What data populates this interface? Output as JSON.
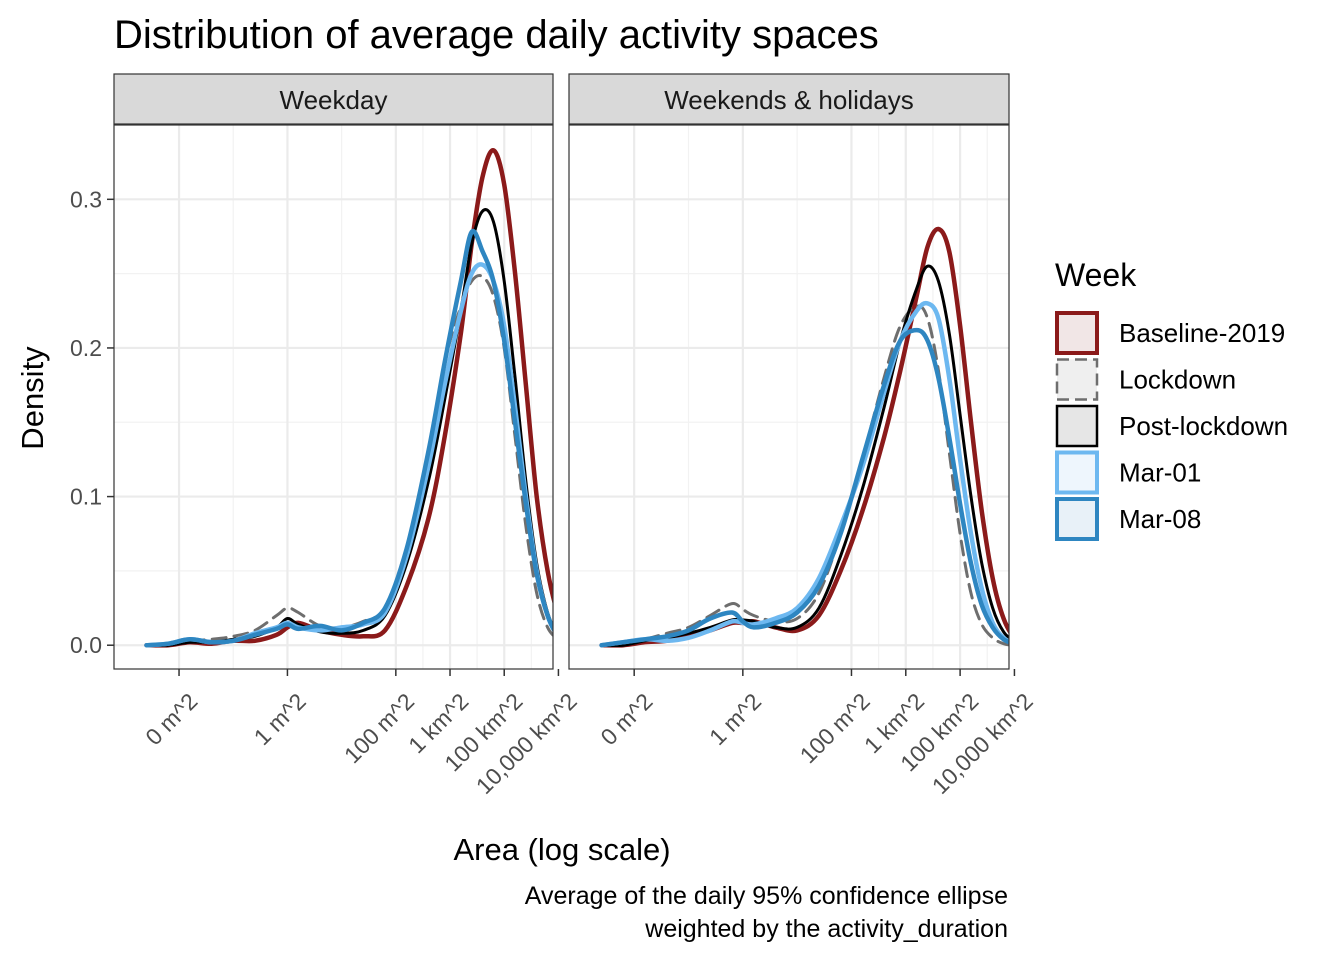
{
  "chart_data": {
    "type": "line",
    "title": "Distribution of average daily activity spaces",
    "xlabel": "Area (log scale)",
    "ylabel": "Density",
    "caption": [
      "Average of the daily 95% confidence ellipse",
      "weighted by the activity_duration"
    ],
    "x_scale": "log10 (area in m^2)",
    "xlim_log10": [
      -3.2,
      4.9
    ],
    "ylim": [
      -0.016,
      0.35
    ],
    "x_ticks": [
      {
        "log10": -2,
        "label": "0 m^2"
      },
      {
        "log10": 0,
        "label": "1 m^2"
      },
      {
        "log10": 2,
        "label": "100 m^2"
      },
      {
        "log10": 3,
        "label": "1 km^2"
      },
      {
        "log10": 4,
        "label": "100 km^2"
      },
      {
        "log10": 5,
        "label": "10,000 km^2"
      }
    ],
    "y_ticks": [
      {
        "value": 0.0,
        "label": "0.0"
      },
      {
        "value": 0.1,
        "label": "0.1"
      },
      {
        "value": 0.2,
        "label": "0.2"
      },
      {
        "value": 0.3,
        "label": "0.3"
      }
    ],
    "grid": true,
    "legend": {
      "title": "Week",
      "position": "right",
      "entries": [
        {
          "name": "Baseline-2019",
          "color": "#8b1a1a",
          "dash": "solid"
        },
        {
          "name": "Lockdown",
          "color": "#6e6e6e",
          "dash": "dashed"
        },
        {
          "name": "Post-lockdown",
          "color": "#000000",
          "dash": "solid"
        },
        {
          "name": "Mar-01",
          "color": "#6db8f0",
          "dash": "solid"
        },
        {
          "name": "Mar-08",
          "color": "#2e86c1",
          "dash": "solid"
        }
      ]
    },
    "panels": [
      {
        "label": "Weekday",
        "series": [
          {
            "name": "Baseline-2019",
            "x": [
              -2.6,
              -2.2,
              -1.8,
              -1.4,
              -1,
              -0.6,
              -0.2,
              0,
              0.2,
              0.6,
              1,
              1.4,
              1.8,
              2.2,
              2.6,
              2.9,
              3.2,
              3.4,
              3.6,
              3.8,
              4,
              4.2,
              4.4,
              4.6,
              4.8,
              5,
              5.2,
              5.4
            ],
            "y": [
              0,
              0,
              0.002,
              0.001,
              0.003,
              0.003,
              0.007,
              0.012,
              0.015,
              0.01,
              0.007,
              0.006,
              0.01,
              0.04,
              0.085,
              0.14,
              0.21,
              0.27,
              0.315,
              0.333,
              0.31,
              0.25,
              0.175,
              0.1,
              0.05,
              0.02,
              0.005,
              0.001
            ]
          },
          {
            "name": "Lockdown",
            "x": [
              -2.6,
              -2.2,
              -1.8,
              -1.4,
              -1,
              -0.6,
              -0.2,
              0,
              0.2,
              0.6,
              1,
              1.4,
              1.8,
              2.2,
              2.6,
              2.9,
              3.2,
              3.4,
              3.6,
              3.8,
              4,
              4.2,
              4.4,
              4.6,
              4.8,
              5,
              5.2,
              5.4
            ],
            "y": [
              0,
              0.001,
              0.003,
              0.004,
              0.006,
              0.01,
              0.02,
              0.025,
              0.022,
              0.013,
              0.012,
              0.016,
              0.025,
              0.065,
              0.13,
              0.19,
              0.228,
              0.245,
              0.248,
              0.235,
              0.2,
              0.14,
              0.08,
              0.035,
              0.012,
              0.004,
              0.001,
              0
            ]
          },
          {
            "name": "Post-lockdown",
            "x": [
              -2.6,
              -2.2,
              -1.8,
              -1.4,
              -1,
              -0.6,
              -0.2,
              0,
              0.2,
              0.6,
              1,
              1.4,
              1.8,
              2.2,
              2.6,
              2.9,
              3.2,
              3.4,
              3.6,
              3.8,
              4,
              4.2,
              4.4,
              4.6,
              4.8,
              5,
              5.2,
              5.4
            ],
            "y": [
              0,
              0,
              0.002,
              0.002,
              0.004,
              0.006,
              0.012,
              0.018,
              0.014,
              0.009,
              0.008,
              0.01,
              0.02,
              0.055,
              0.11,
              0.165,
              0.225,
              0.27,
              0.292,
              0.285,
              0.245,
              0.18,
              0.11,
              0.055,
              0.022,
              0.007,
              0.002,
              0
            ]
          },
          {
            "name": "Mar-01",
            "x": [
              -2.6,
              -2.2,
              -1.8,
              -1.4,
              -1,
              -0.6,
              -0.2,
              0,
              0.2,
              0.6,
              1,
              1.4,
              1.8,
              2.2,
              2.6,
              2.9,
              3.2,
              3.4,
              3.6,
              3.8,
              4,
              4.2,
              4.4,
              4.6,
              4.8,
              5,
              5.2,
              5.4
            ],
            "y": [
              0,
              0.001,
              0.004,
              0.002,
              0.003,
              0.008,
              0.012,
              0.015,
              0.012,
              0.01,
              0.012,
              0.014,
              0.022,
              0.06,
              0.12,
              0.175,
              0.225,
              0.25,
              0.256,
              0.245,
              0.215,
              0.16,
              0.1,
              0.05,
              0.02,
              0.006,
              0.002,
              0
            ]
          },
          {
            "name": "Mar-08",
            "x": [
              -2.6,
              -2.2,
              -1.8,
              -1.4,
              -1,
              -0.6,
              -0.2,
              0,
              0.2,
              0.6,
              1,
              1.4,
              1.8,
              2.2,
              2.6,
              2.9,
              3.2,
              3.4,
              3.6,
              3.8,
              4,
              4.2,
              4.4,
              4.6,
              4.8,
              5,
              5.2,
              5.4
            ],
            "y": [
              0,
              0.001,
              0.004,
              0.002,
              0.003,
              0.007,
              0.011,
              0.014,
              0.011,
              0.013,
              0.01,
              0.015,
              0.025,
              0.065,
              0.13,
              0.19,
              0.245,
              0.278,
              0.265,
              0.245,
              0.205,
              0.15,
              0.095,
              0.048,
              0.02,
              0.006,
              0.002,
              0
            ]
          }
        ]
      },
      {
        "label": "Weekends & holidays",
        "series": [
          {
            "name": "Baseline-2019",
            "x": [
              -2.6,
              -2.2,
              -1.8,
              -1.4,
              -1,
              -0.6,
              -0.2,
              0,
              0.2,
              0.6,
              1,
              1.4,
              1.8,
              2.2,
              2.6,
              2.9,
              3.2,
              3.4,
              3.6,
              3.8,
              4,
              4.2,
              4.4,
              4.6,
              4.8,
              5,
              5.2,
              5.4
            ],
            "y": [
              0,
              0,
              0.002,
              0.003,
              0.006,
              0.01,
              0.015,
              0.015,
              0.016,
              0.012,
              0.01,
              0.02,
              0.05,
              0.09,
              0.14,
              0.185,
              0.235,
              0.268,
              0.28,
              0.265,
              0.215,
              0.15,
              0.09,
              0.045,
              0.018,
              0.005,
              0.001,
              0
            ]
          },
          {
            "name": "Lockdown",
            "x": [
              -2.6,
              -2.2,
              -1.8,
              -1.4,
              -1,
              -0.6,
              -0.2,
              0,
              0.2,
              0.6,
              1,
              1.4,
              1.8,
              2.2,
              2.6,
              2.9,
              3.2,
              3.4,
              3.6,
              3.8,
              4,
              4.2,
              4.4,
              4.6,
              4.8,
              5,
              5.2,
              5.4
            ],
            "y": [
              0,
              0.001,
              0.004,
              0.008,
              0.012,
              0.02,
              0.028,
              0.024,
              0.02,
              0.016,
              0.018,
              0.035,
              0.075,
              0.125,
              0.18,
              0.215,
              0.228,
              0.22,
              0.185,
              0.13,
              0.075,
              0.035,
              0.014,
              0.005,
              0.001,
              0,
              0,
              0
            ]
          },
          {
            "name": "Post-lockdown",
            "x": [
              -2.6,
              -2.2,
              -1.8,
              -1.4,
              -1,
              -0.6,
              -0.2,
              0,
              0.2,
              0.6,
              1,
              1.4,
              1.8,
              2.2,
              2.6,
              2.9,
              3.2,
              3.4,
              3.6,
              3.8,
              4,
              4.2,
              4.4,
              4.6,
              4.8,
              5,
              5.2,
              5.4
            ],
            "y": [
              0,
              0,
              0.003,
              0.005,
              0.008,
              0.012,
              0.017,
              0.017,
              0.016,
              0.012,
              0.012,
              0.025,
              0.06,
              0.105,
              0.16,
              0.205,
              0.24,
              0.255,
              0.245,
              0.21,
              0.155,
              0.1,
              0.055,
              0.025,
              0.009,
              0.003,
              0.001,
              0
            ]
          },
          {
            "name": "Mar-01",
            "x": [
              -2.6,
              -2.2,
              -1.8,
              -1.4,
              -1,
              -0.6,
              -0.2,
              0,
              0.2,
              0.6,
              1,
              1.4,
              1.8,
              2.2,
              2.6,
              2.9,
              3.2,
              3.4,
              3.6,
              3.8,
              4,
              4.2,
              4.4,
              4.6,
              4.8,
              5,
              5.2,
              5.4
            ],
            "y": [
              0,
              0.002,
              0.004,
              0.003,
              0.005,
              0.01,
              0.016,
              0.015,
              0.014,
              0.018,
              0.025,
              0.045,
              0.08,
              0.12,
              0.17,
              0.205,
              0.225,
              0.23,
              0.22,
              0.18,
              0.125,
              0.075,
              0.038,
              0.015,
              0.005,
              0.001,
              0,
              0
            ]
          },
          {
            "name": "Mar-08",
            "x": [
              -2.6,
              -2.2,
              -1.8,
              -1.4,
              -1,
              -0.6,
              -0.2,
              0,
              0.2,
              0.6,
              1,
              1.4,
              1.8,
              2.2,
              2.6,
              2.9,
              3.2,
              3.4,
              3.6,
              3.8,
              4,
              4.2,
              4.4,
              4.6,
              4.8,
              5,
              5.2,
              5.4
            ],
            "y": [
              0,
              0.002,
              0.004,
              0.006,
              0.01,
              0.018,
              0.022,
              0.016,
              0.012,
              0.015,
              0.022,
              0.04,
              0.075,
              0.125,
              0.175,
              0.205,
              0.212,
              0.205,
              0.18,
              0.14,
              0.095,
              0.055,
              0.027,
              0.012,
              0.004,
              0.001,
              0,
              0
            ]
          }
        ]
      }
    ]
  }
}
